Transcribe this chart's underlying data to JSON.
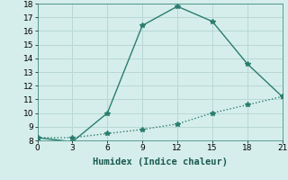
{
  "title": "",
  "xlabel": "Humidex (Indice chaleur)",
  "line1_x": [
    0,
    3,
    6,
    9,
    12,
    15,
    18,
    21
  ],
  "line1_y": [
    8.2,
    7.9,
    10.0,
    16.4,
    17.8,
    16.7,
    13.6,
    11.2
  ],
  "line2_x": [
    0,
    3,
    6,
    9,
    12,
    15,
    18,
    21
  ],
  "line2_y": [
    8.2,
    8.2,
    8.5,
    8.8,
    9.2,
    10.0,
    10.6,
    11.2
  ],
  "line_color": "#2a7d6e",
  "bg_color": "#d5eeeb",
  "grid_color": "#b8d8d4",
  "xlim": [
    0,
    21
  ],
  "ylim": [
    8,
    18
  ],
  "xticks": [
    0,
    3,
    6,
    9,
    12,
    15,
    18,
    21
  ],
  "yticks": [
    8,
    9,
    10,
    11,
    12,
    13,
    14,
    15,
    16,
    17,
    18
  ],
  "tick_fontsize": 6.5,
  "xlabel_fontsize": 7.5,
  "marker": "*",
  "markersize": 4,
  "linewidth": 1.0
}
